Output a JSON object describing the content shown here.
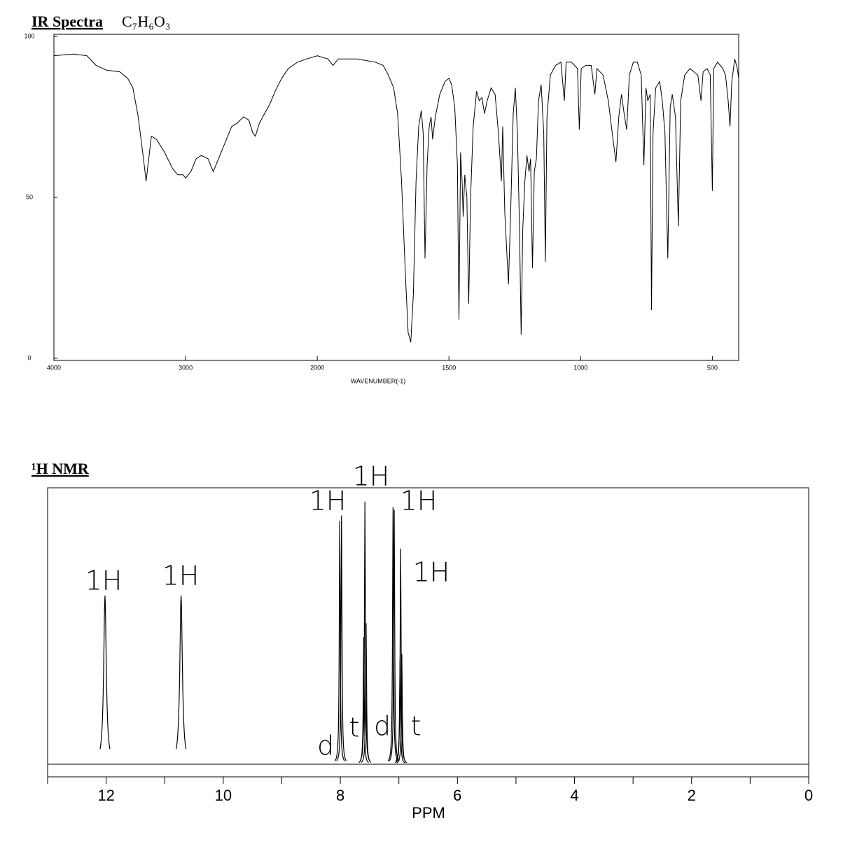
{
  "chart_data": [
    {
      "type": "line",
      "title": "IR Spectra",
      "subtitle": "C₇H₆O₃",
      "x_label": "WAVENUMBER(-1)",
      "color": "#000000",
      "xlim": [
        4000,
        400
      ],
      "xticks": [
        4000,
        3000,
        2000,
        1500,
        1000,
        500
      ],
      "ylim": [
        0,
        100
      ],
      "yticks": [
        0,
        50,
        100
      ],
      "x": [
        4000,
        3850,
        3750,
        3680,
        3600,
        3500,
        3440,
        3400,
        3360,
        3320,
        3300,
        3280,
        3260,
        3220,
        3160,
        3100,
        3060,
        3020,
        3000,
        2960,
        2920,
        2880,
        2830,
        2790,
        2740,
        2700,
        2650,
        2610,
        2560,
        2520,
        2490,
        2470,
        2440,
        2400,
        2360,
        2320,
        2270,
        2220,
        2150,
        2080,
        2000,
        1960,
        1940,
        1920,
        1850,
        1780,
        1750,
        1730,
        1710,
        1695,
        1680,
        1665,
        1655,
        1645,
        1635,
        1625,
        1615,
        1605,
        1598,
        1591,
        1583,
        1575,
        1568,
        1562,
        1552,
        1535,
        1515,
        1500,
        1490,
        1478,
        1468,
        1462,
        1456,
        1450,
        1446,
        1440,
        1432,
        1425,
        1418,
        1408,
        1395,
        1385,
        1375,
        1365,
        1355,
        1340,
        1325,
        1312,
        1301,
        1296,
        1288,
        1274,
        1266,
        1256,
        1248,
        1240,
        1232,
        1226,
        1220,
        1212,
        1204,
        1196,
        1190,
        1183,
        1176,
        1168,
        1160,
        1150,
        1140,
        1134,
        1128,
        1115,
        1095,
        1075,
        1062,
        1055,
        1035,
        1012,
        1005,
        998,
        980,
        960,
        946,
        938,
        915,
        895,
        880,
        866,
        855,
        845,
        835,
        825,
        815,
        800,
        785,
        770,
        760,
        752,
        745,
        736,
        731,
        725,
        715,
        700,
        690,
        680,
        669,
        660,
        652,
        640,
        629,
        620,
        605,
        585,
        570,
        555,
        543,
        535,
        520,
        508,
        500,
        495,
        480,
        460,
        450,
        440,
        433,
        426,
        415,
        405,
        400
      ],
      "values": [
        94,
        94.5,
        94,
        91,
        89.5,
        89,
        87,
        84,
        75,
        62,
        55,
        62,
        69,
        68,
        64,
        59,
        57,
        57,
        56,
        58,
        62,
        63,
        62,
        58,
        63,
        67,
        72,
        73,
        75,
        74,
        70,
        69,
        73,
        76,
        79,
        83,
        87,
        90,
        92,
        93,
        94,
        93,
        91,
        93,
        93,
        92,
        91,
        88,
        84,
        76,
        55,
        25,
        8,
        5,
        20,
        55,
        72,
        77,
        70,
        31,
        60,
        72,
        75,
        68,
        75,
        82,
        86,
        87,
        85,
        78,
        60,
        12,
        64,
        55,
        44,
        57,
        50,
        17,
        50,
        72,
        83,
        80,
        81,
        76,
        80,
        84,
        82,
        70,
        55,
        72,
        45,
        23,
        45,
        76,
        84,
        70,
        40,
        7.4,
        40,
        55,
        63,
        58,
        62,
        28,
        58,
        62,
        80,
        85,
        70,
        30,
        75,
        88,
        91,
        92,
        80,
        92,
        92,
        90,
        71,
        90,
        91,
        91,
        82,
        90,
        88,
        80,
        70,
        61,
        75,
        82,
        76,
        71,
        88,
        92,
        92,
        88,
        60,
        84,
        80,
        82,
        15,
        70,
        84,
        86,
        80,
        70,
        31,
        78,
        82,
        75,
        41,
        80,
        88,
        90,
        89,
        88,
        80,
        89,
        90,
        88,
        52,
        90,
        92,
        90,
        88,
        80,
        72,
        86,
        93,
        90,
        87
      ]
    },
    {
      "type": "peaks",
      "title": "¹H NMR",
      "x_label": "PPM",
      "color": "#000000",
      "xlim": [
        13,
        0
      ],
      "xticks": [
        12,
        10,
        8,
        6,
        4,
        2,
        0
      ],
      "xminorticks": [
        13,
        11,
        9,
        7,
        5,
        3,
        1
      ],
      "ylim": [
        0,
        100
      ],
      "x": [
        12.02,
        10.72,
        8.01,
        7.98,
        7.6,
        7.58,
        7.56,
        7.1,
        7.08,
        6.98,
        6.97,
        6.95
      ],
      "values": [
        61,
        61,
        88,
        90,
        46,
        95,
        51,
        93,
        92,
        38,
        78,
        40
      ],
      "annotations": [
        "1H",
        "1H",
        "1H",
        "1H",
        "1H",
        "1H",
        "d",
        "t",
        "d",
        "t"
      ]
    }
  ]
}
